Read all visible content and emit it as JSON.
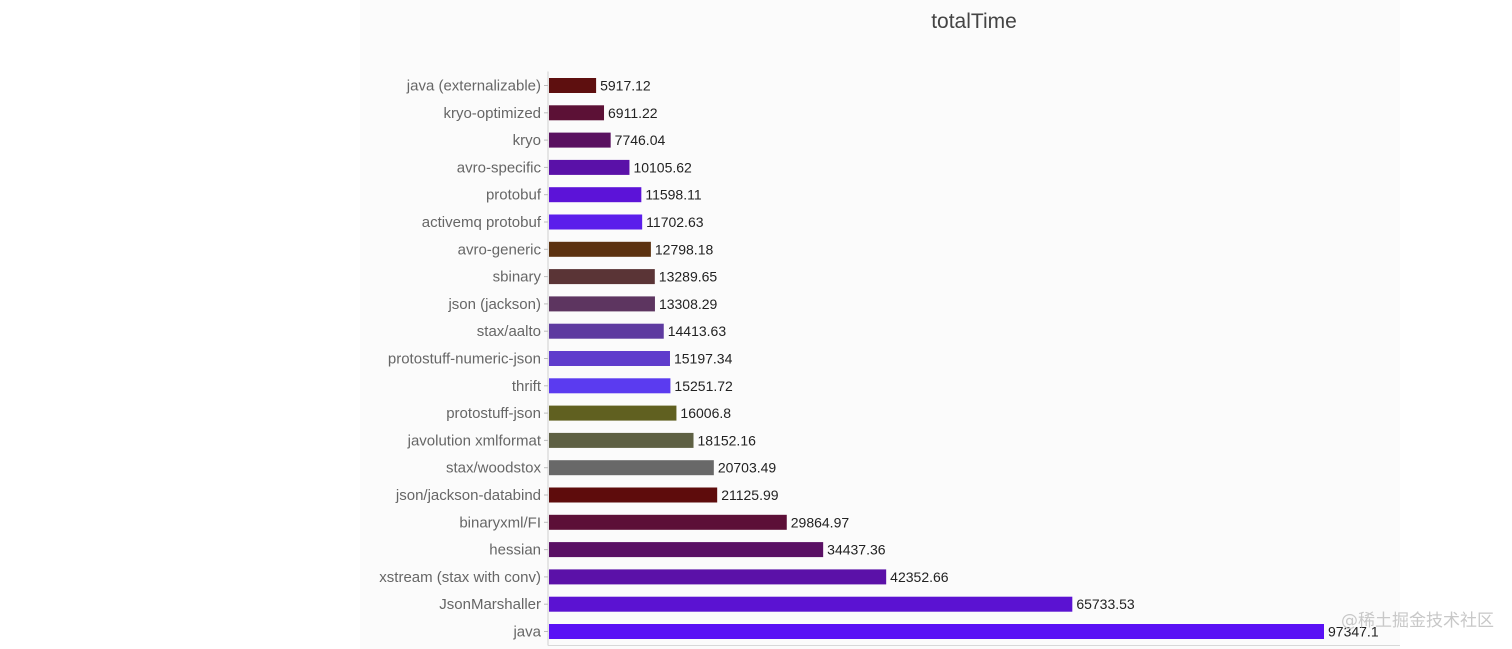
{
  "chart_data": {
    "type": "bar",
    "orientation": "horizontal",
    "title": "totalTime",
    "xlabel": "",
    "ylabel": "",
    "grid": false,
    "xlim": [
      0,
      97347.1
    ],
    "categories": [
      "java (externalizable)",
      "kryo-optimized",
      "kryo",
      "avro-specific",
      "protobuf",
      "activemq protobuf",
      "avro-generic",
      "sbinary",
      "json (jackson)",
      "stax/aalto",
      "protostuff-numeric-json",
      "thrift",
      "protostuff-json",
      "javolution xmlformat",
      "stax/woodstox",
      "json/jackson-databind",
      "binaryxml/FI",
      "hessian",
      "xstream (stax with conv)",
      "JsonMarshaller",
      "java"
    ],
    "values": [
      5917.12,
      6911.22,
      7746.04,
      10105.62,
      11598.11,
      11702.63,
      12798.18,
      13289.65,
      13308.29,
      14413.63,
      15197.34,
      15251.72,
      16006.8,
      18152.16,
      20703.49,
      21125.99,
      29864.97,
      34437.36,
      42352.66,
      65733.53,
      97347.1
    ],
    "value_labels": [
      "5917.12",
      "6911.22",
      "7746.04",
      "10105.62",
      "11598.11",
      "11702.63",
      "12798.18",
      "13289.65",
      "13308.29",
      "14413.63",
      "15197.34",
      "15251.72",
      "16006.8",
      "18152.16",
      "20703.49",
      "21125.99",
      "29864.97",
      "34437.36",
      "42352.66",
      "65733.53",
      "97347.1"
    ],
    "colors": [
      "#5e0f0f",
      "#5c1136",
      "#5a1160",
      "#5a11a8",
      "#5c13d8",
      "#5b1eeb",
      "#5c3210",
      "#5a3436",
      "#5d3560",
      "#5e3aa0",
      "#5f3ccc",
      "#5b3bf0",
      "#606020",
      "#5e6043",
      "#686868",
      "#5e0c0c",
      "#5c0f37",
      "#5a1064",
      "#5b11a8",
      "#5b12d2",
      "#5a11f5"
    ]
  },
  "watermark": "@稀土掘金技术社区"
}
